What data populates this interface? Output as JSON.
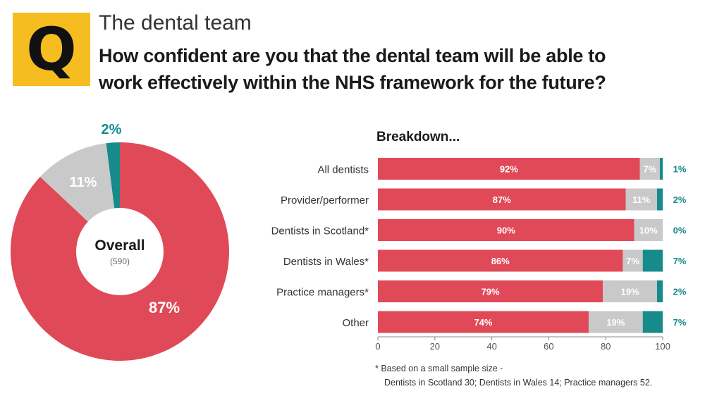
{
  "header": {
    "badge_letter": "Q",
    "section_title": "The dental team",
    "question": "How confident are you that the dental team will be able to work effectively within the NHS framework for the future?"
  },
  "colors": {
    "confident": "#e04957",
    "neutral": "#c9c9c9",
    "not_confident": "#178a8c",
    "badge": "#f5bd1f"
  },
  "chart_data": [
    {
      "type": "pie",
      "center_label": "Overall",
      "center_sublabel": "(590)",
      "slices": [
        {
          "value": 87,
          "label": "87%",
          "color": "#e04957"
        },
        {
          "value": 11,
          "label": "11%",
          "color": "#c9c9c9"
        },
        {
          "value": 2,
          "label": "2%",
          "color": "#178a8c"
        }
      ]
    },
    {
      "type": "bar",
      "orientation": "horizontal",
      "stacked": true,
      "title": "Breakdown...",
      "categories": [
        "All dentists",
        "Provider/performer",
        "Dentists in Scotland*",
        "Dentists in Wales*",
        "Practice managers*",
        "Other"
      ],
      "series": [
        {
          "values": [
            92,
            87,
            90,
            86,
            79,
            74
          ],
          "color": "#e04957"
        },
        {
          "values": [
            7,
            11,
            10,
            7,
            19,
            19
          ],
          "color": "#c9c9c9"
        },
        {
          "values": [
            1,
            2,
            0,
            7,
            2,
            7
          ],
          "color": "#178a8c"
        }
      ],
      "xlim": [
        0,
        100
      ],
      "xticks": [
        0,
        20,
        40,
        60,
        80,
        100
      ],
      "grid": false
    }
  ],
  "footnote": {
    "line1": "*  Based on a small sample size -",
    "line2": "Dentists in Scotland 30; Dentists in Wales 14; Practice managers 52."
  }
}
